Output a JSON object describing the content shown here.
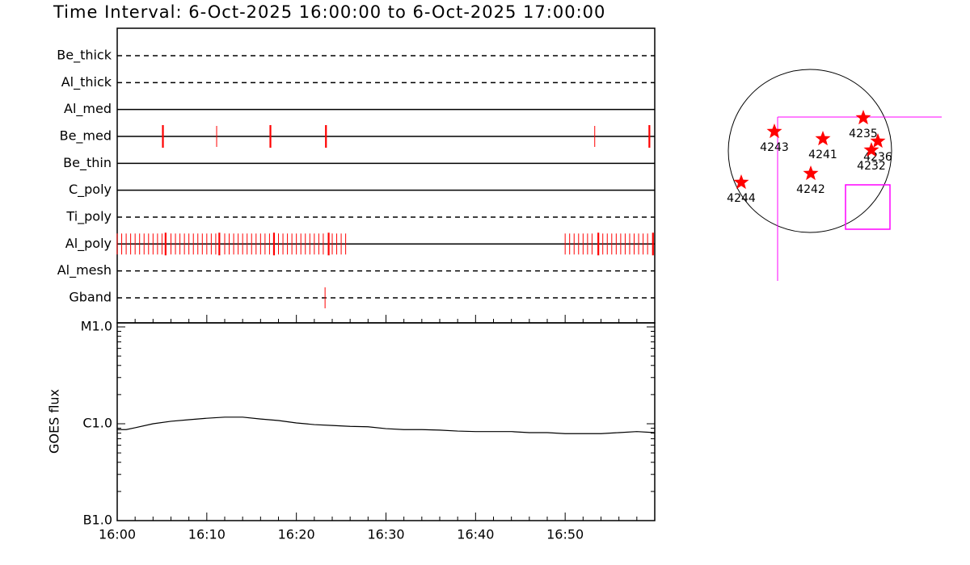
{
  "chart_data": [
    {
      "type": "event",
      "title": "Time Interval:  6-Oct-2025 16:00:00 to  6-Oct-2025 17:00:00",
      "xlim": [
        0,
        60
      ],
      "color": "#ff0000",
      "rows": [
        {
          "name": "Be_thick",
          "style": "dashed",
          "events": [],
          "major_events": []
        },
        {
          "name": "Al_thick",
          "style": "dashed",
          "events": [],
          "major_events": []
        },
        {
          "name": "Al_med",
          "style": "solid",
          "events": [],
          "major_events": []
        },
        {
          "name": "Be_med",
          "style": "solid",
          "events": [
            11.1,
            53.3
          ],
          "major_events": [
            5.1,
            17.1,
            23.3,
            59.4
          ]
        },
        {
          "name": "Be_thin",
          "style": "solid",
          "events": [],
          "major_events": []
        },
        {
          "name": "C_poly",
          "style": "solid",
          "events": [],
          "major_events": []
        },
        {
          "name": "Ti_poly",
          "style": "dashed",
          "events": [],
          "major_events": []
        },
        {
          "name": "Al_poly",
          "style": "solid",
          "events": [
            0,
            0.5,
            1,
            1.5,
            2,
            2.5,
            3,
            3.5,
            4,
            4.5,
            5,
            6,
            6.5,
            7,
            7.5,
            8,
            8.5,
            9,
            9.5,
            10,
            10.5,
            11,
            12,
            12.5,
            13,
            13.5,
            14,
            14.5,
            15,
            15.5,
            16,
            16.5,
            17,
            18,
            18.5,
            19,
            19.5,
            20,
            20.5,
            21,
            21.5,
            22,
            22.5,
            23,
            24,
            24.5,
            25,
            25.5,
            50,
            50.5,
            51,
            51.5,
            52,
            52.5,
            53,
            54.2,
            54.7,
            55.2,
            55.7,
            56.2,
            56.7,
            57.2,
            57.7,
            58.2,
            58.7,
            59.2
          ],
          "major_events": [
            5.4,
            11.4,
            17.5,
            23.6,
            53.7,
            59.8
          ]
        },
        {
          "name": "Al_mesh",
          "style": "dashed",
          "events": [],
          "major_events": []
        },
        {
          "name": "Gband",
          "style": "dashed",
          "events": [
            23.2
          ],
          "major_events": []
        }
      ]
    },
    {
      "type": "line",
      "ylabel": "GOES flux",
      "log": true,
      "color": "#000000",
      "xlim": [
        0,
        60
      ],
      "xticks": [
        {
          "value": 0,
          "label": "16:00"
        },
        {
          "value": 10,
          "label": "16:10"
        },
        {
          "value": 20,
          "label": "16:20"
        },
        {
          "value": 30,
          "label": "16:30"
        },
        {
          "value": 40,
          "label": "16:40"
        },
        {
          "value": 50,
          "label": "16:50"
        }
      ],
      "xminorticks": [
        2,
        4,
        6,
        8,
        12,
        14,
        16,
        18,
        22,
        24,
        26,
        28,
        32,
        34,
        36,
        38,
        42,
        44,
        46,
        48,
        52,
        54,
        56,
        58
      ],
      "ylim": [
        1e-07,
        1e-05
      ],
      "yticks": [
        {
          "value": 1e-07,
          "label": "B1.0"
        },
        {
          "value": 1e-06,
          "label": "C1.0"
        },
        {
          "value": 1e-05,
          "label": "M1.0"
        }
      ],
      "yminorticks": [
        2e-07,
        3e-07,
        4e-07,
        5e-07,
        6e-07,
        7e-07,
        8e-07,
        9e-07,
        2e-06,
        3e-06,
        4e-06,
        5e-06,
        6e-06,
        7e-06,
        8e-06,
        9e-06
      ],
      "x": [
        0,
        1,
        2,
        4,
        6,
        8,
        10,
        12,
        14,
        16,
        18,
        20,
        22,
        24,
        26,
        28,
        30,
        32,
        34,
        36,
        38,
        40,
        42,
        44,
        46,
        48,
        50,
        52,
        54,
        56,
        58,
        60
      ],
      "values": [
        8.7e-07,
        8.7e-07,
        9.1e-07,
        1e-06,
        1.06e-06,
        1.1e-06,
        1.14e-06,
        1.17e-06,
        1.17e-06,
        1.12e-06,
        1.08e-06,
        1.02e-06,
        9.8e-07,
        9.6e-07,
        9.4e-07,
        9.3e-07,
        8.9e-07,
        8.7e-07,
        8.7e-07,
        8.6e-07,
        8.4e-07,
        8.3e-07,
        8.3e-07,
        8.3e-07,
        8.1e-07,
        8.1e-07,
        7.9e-07,
        7.9e-07,
        7.9e-07,
        8.1e-07,
        8.3e-07,
        8.1e-07
      ]
    }
  ],
  "disk_map": {
    "regions": [
      "4243",
      "4241",
      "4235",
      "4236",
      "4232",
      "4242",
      "4244"
    ]
  }
}
